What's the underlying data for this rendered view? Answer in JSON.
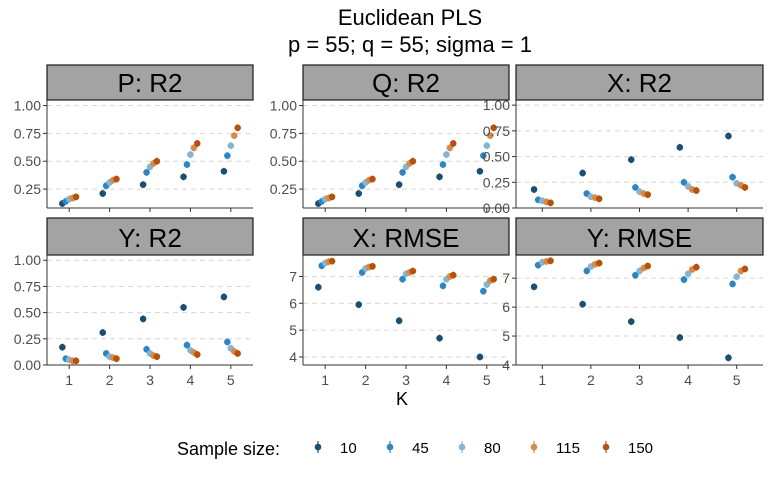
{
  "title": "Euclidean PLS",
  "subtitle": "p = 55; q = 55; sigma = 1",
  "xlabel": "K",
  "legend": {
    "title": "Sample size:",
    "labels": [
      "10",
      "45",
      "80",
      "115",
      "150"
    ],
    "colors": [
      "#1b4f72",
      "#2e86c1",
      "#85b4d4",
      "#d88b48",
      "#b4520e"
    ]
  },
  "chart_data": {
    "type": "scatter",
    "x": [
      1,
      2,
      3,
      4,
      5
    ],
    "panels": [
      {
        "title": "P: R2",
        "ylim": [
          0.08,
          1.05
        ],
        "yticks": [
          "0.25",
          "0.50",
          "0.75",
          "1.00"
        ],
        "series": [
          {
            "name": "10",
            "values": [
              0.12,
              0.21,
              0.29,
              0.36,
              0.41
            ]
          },
          {
            "name": "45",
            "values": [
              0.14,
              0.28,
              0.4,
              0.47,
              0.55
            ]
          },
          {
            "name": "80",
            "values": [
              0.16,
              0.31,
              0.45,
              0.56,
              0.64
            ]
          },
          {
            "name": "115",
            "values": [
              0.17,
              0.33,
              0.48,
              0.62,
              0.73
            ]
          },
          {
            "name": "150",
            "values": [
              0.18,
              0.34,
              0.5,
              0.66,
              0.8
            ]
          }
        ]
      },
      {
        "title": "Q: R2",
        "ylim": [
          0.08,
          1.05
        ],
        "yticks": [
          "0.25",
          "0.50",
          "0.75",
          "1.00"
        ],
        "series": [
          {
            "name": "10",
            "values": [
              0.12,
              0.21,
              0.29,
              0.36,
              0.41
            ]
          },
          {
            "name": "45",
            "values": [
              0.14,
              0.28,
              0.4,
              0.47,
              0.55
            ]
          },
          {
            "name": "80",
            "values": [
              0.16,
              0.31,
              0.45,
              0.56,
              0.64
            ]
          },
          {
            "name": "115",
            "values": [
              0.17,
              0.33,
              0.48,
              0.62,
              0.73
            ]
          },
          {
            "name": "150",
            "values": [
              0.18,
              0.34,
              0.5,
              0.66,
              0.8
            ]
          }
        ]
      },
      {
        "title": "X: R2",
        "ylim": [
          0.0,
          1.05
        ],
        "yticks": [
          "0.00",
          "0.25",
          "0.50",
          "0.75",
          "1.00"
        ],
        "series": [
          {
            "name": "10",
            "values": [
              0.18,
              0.34,
              0.47,
              0.59,
              0.7
            ]
          },
          {
            "name": "45",
            "values": [
              0.08,
              0.14,
              0.2,
              0.25,
              0.3
            ]
          },
          {
            "name": "80",
            "values": [
              0.07,
              0.11,
              0.16,
              0.21,
              0.24
            ]
          },
          {
            "name": "115",
            "values": [
              0.06,
              0.1,
              0.14,
              0.18,
              0.22
            ]
          },
          {
            "name": "150",
            "values": [
              0.05,
              0.09,
              0.13,
              0.17,
              0.2
            ]
          }
        ]
      },
      {
        "title": "Y: R2",
        "ylim": [
          0.0,
          1.05
        ],
        "yticks": [
          "0.00",
          "0.25",
          "0.50",
          "0.75",
          "1.00"
        ],
        "series": [
          {
            "name": "10",
            "values": [
              0.17,
              0.31,
              0.44,
              0.55,
              0.65
            ]
          },
          {
            "name": "45",
            "values": [
              0.06,
              0.11,
              0.15,
              0.19,
              0.22
            ]
          },
          {
            "name": "80",
            "values": [
              0.05,
              0.08,
              0.11,
              0.14,
              0.16
            ]
          },
          {
            "name": "115",
            "values": [
              0.04,
              0.07,
              0.09,
              0.12,
              0.13
            ]
          },
          {
            "name": "150",
            "values": [
              0.04,
              0.06,
              0.08,
              0.1,
              0.11
            ]
          }
        ]
      },
      {
        "title": "X: RMSE",
        "ylim": [
          3.7,
          7.8
        ],
        "yticks": [
          "4",
          "5",
          "6",
          "7"
        ],
        "series": [
          {
            "name": "10",
            "values": [
              6.6,
              5.95,
              5.35,
              4.7,
              4.0
            ]
          },
          {
            "name": "45",
            "values": [
              7.4,
              7.15,
              6.9,
              6.65,
              6.45
            ]
          },
          {
            "name": "80",
            "values": [
              7.5,
              7.3,
              7.1,
              6.9,
              6.7
            ]
          },
          {
            "name": "115",
            "values": [
              7.55,
              7.35,
              7.15,
              7.0,
              6.85
            ]
          },
          {
            "name": "150",
            "values": [
              7.57,
              7.38,
              7.2,
              7.05,
              6.9
            ]
          }
        ]
      },
      {
        "title": "Y: RMSE",
        "ylim": [
          4.0,
          7.8
        ],
        "yticks": [
          "4",
          "5",
          "6",
          "7"
        ],
        "series": [
          {
            "name": "10",
            "values": [
              6.7,
              6.1,
              5.5,
              4.95,
              4.25
            ]
          },
          {
            "name": "45",
            "values": [
              7.45,
              7.25,
              7.1,
              6.95,
              6.8
            ]
          },
          {
            "name": "80",
            "values": [
              7.55,
              7.4,
              7.25,
              7.15,
              7.05
            ]
          },
          {
            "name": "115",
            "values": [
              7.58,
              7.48,
              7.35,
              7.3,
              7.25
            ]
          },
          {
            "name": "150",
            "values": [
              7.6,
              7.52,
              7.42,
              7.38,
              7.32
            ]
          }
        ]
      }
    ]
  }
}
